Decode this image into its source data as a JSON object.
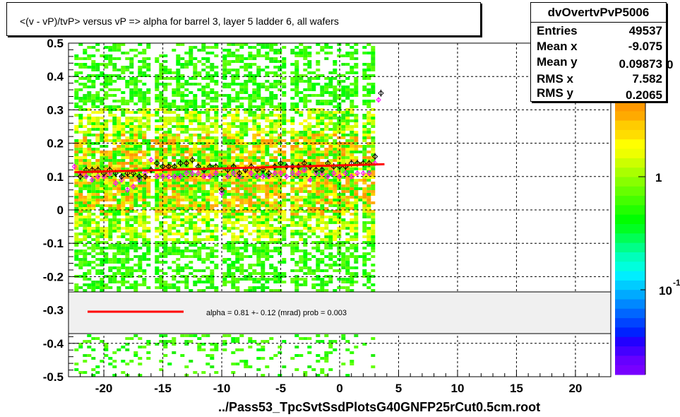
{
  "title": "<(v - vP)/tvP> versus   vP => alpha for barrel 3, layer 5 ladder 6, all wafers",
  "stats": {
    "name": "dvOvertvPvP5006",
    "rows": [
      {
        "label": "Entries",
        "value": "49537"
      },
      {
        "label": "Mean x",
        "value": "-9.075"
      },
      {
        "label": "Mean y",
        "value": "0.09873"
      },
      {
        "label": "RMS x",
        "value": "7.582"
      },
      {
        "label": "RMS y",
        "value": "0.2065"
      }
    ]
  },
  "footer": "../Pass53_TpcSvtSsdPlotsG40GNFP25rCut0.5cm.root",
  "legend_text": "alpha =     0.81 +-  0.12 (mrad) prob = 0.003",
  "colors": {
    "fit_line": "#ff0000",
    "profile_black": "#000000",
    "profile_magenta": "#ff00ff",
    "legend_bg": "#f0f0f0"
  },
  "chart_data": {
    "type": "heatmap",
    "xlim": [
      -23,
      23
    ],
    "ylim": [
      -0.5,
      0.5
    ],
    "x_ticks": [
      "-20",
      "-15",
      "-10",
      "-5",
      "0",
      "5",
      "10",
      "15",
      "20"
    ],
    "x_tick_values": [
      -20,
      -15,
      -10,
      -5,
      0,
      5,
      10,
      15,
      20
    ],
    "y_ticks": [
      "0.5",
      "0.4",
      "0.3",
      "0.2",
      "0.1",
      "0",
      "-0.1",
      "-0.2",
      "-0.3",
      "-0.4",
      "-0.5"
    ],
    "y_tick_values": [
      0.5,
      0.4,
      0.3,
      0.2,
      0.1,
      0,
      -0.1,
      -0.2,
      -0.3,
      -0.4,
      -0.5
    ],
    "grid": true,
    "data_x_range": [
      -22.5,
      3.0
    ],
    "colorbar_labels": [
      "1",
      "10"
    ],
    "colorbar_labels_partial": [
      "0",
      "-1"
    ],
    "fit_line": {
      "x": [
        -22.5,
        3.8
      ],
      "y": [
        0.113,
        0.137
      ]
    },
    "profile_black": {
      "x": [
        -22,
        -21.5,
        -21,
        -20.5,
        -20,
        -19.5,
        -19,
        -18.5,
        -18,
        -17.5,
        -17,
        -16.5,
        -16,
        -15.5,
        -15,
        -14.5,
        -14,
        -13.5,
        -13,
        -12.5,
        -12,
        -11.5,
        -11,
        -10.5,
        -10,
        -9.5,
        -9,
        -8.5,
        -8,
        -7.5,
        -7,
        -6.5,
        -6,
        -5.5,
        -5,
        -4.5,
        -4,
        -3.5,
        -3,
        -2.5,
        -2,
        -1.5,
        -1,
        -0.5,
        0,
        0.5,
        1,
        1.5,
        2,
        2.5,
        3,
        3.5
      ],
      "y": [
        0.1,
        0.12,
        0.12,
        0.12,
        0.11,
        0.12,
        0.11,
        0.1,
        0.11,
        0.11,
        0.1,
        0.1,
        0.12,
        0.14,
        0.13,
        0.13,
        0.13,
        0.14,
        0.14,
        0.15,
        0.13,
        0.12,
        0.13,
        0.13,
        0.06,
        0.12,
        0.13,
        0.11,
        0.12,
        0.13,
        0.12,
        0.12,
        0.11,
        0.13,
        0.14,
        0.13,
        0.13,
        0.13,
        0.14,
        0.13,
        0.12,
        0.12,
        0.14,
        0.13,
        0.13,
        0.13,
        0.14,
        0.14,
        0.14,
        0.14,
        0.16,
        0.35
      ]
    },
    "profile_magenta": {
      "x": [
        -22.5,
        -22,
        -21.5,
        -21,
        -20.5,
        -20,
        -19.5,
        -19,
        -18.5,
        -18,
        -17.5,
        -17,
        -16.5,
        -16,
        -15.5,
        -15,
        -14.5,
        -14,
        -13.5,
        -13,
        -12.5,
        -12,
        -11.5,
        -11,
        -10.5,
        -10,
        -9.5,
        -9,
        -8.5,
        -8,
        -7.5,
        -7,
        -6.5,
        -6,
        -5.5,
        -5,
        -4.5,
        -4,
        -3.5,
        -3,
        -2.5,
        -2,
        -1.5,
        -1,
        -0.5,
        0,
        0.5,
        1,
        1.5,
        2,
        2.5,
        3,
        3.3
      ],
      "y": [
        0.13,
        0.11,
        0.1,
        0.09,
        0.1,
        0.1,
        0.11,
        0.08,
        0.09,
        0.06,
        0.07,
        0.09,
        0.11,
        0.15,
        0.1,
        0.1,
        0.1,
        0.1,
        0.1,
        0.11,
        0.11,
        0.11,
        0.1,
        0.1,
        0.11,
        0.05,
        0.1,
        0.11,
        0.1,
        0.12,
        0.11,
        0.1,
        0.1,
        0.1,
        0.11,
        0.11,
        0.1,
        0.11,
        0.11,
        0.12,
        0.09,
        0.11,
        0.11,
        0.1,
        0.11,
        0.1,
        0.11,
        0.1,
        0.11,
        0.11,
        0.11,
        0.14,
        0.33
      ]
    }
  }
}
